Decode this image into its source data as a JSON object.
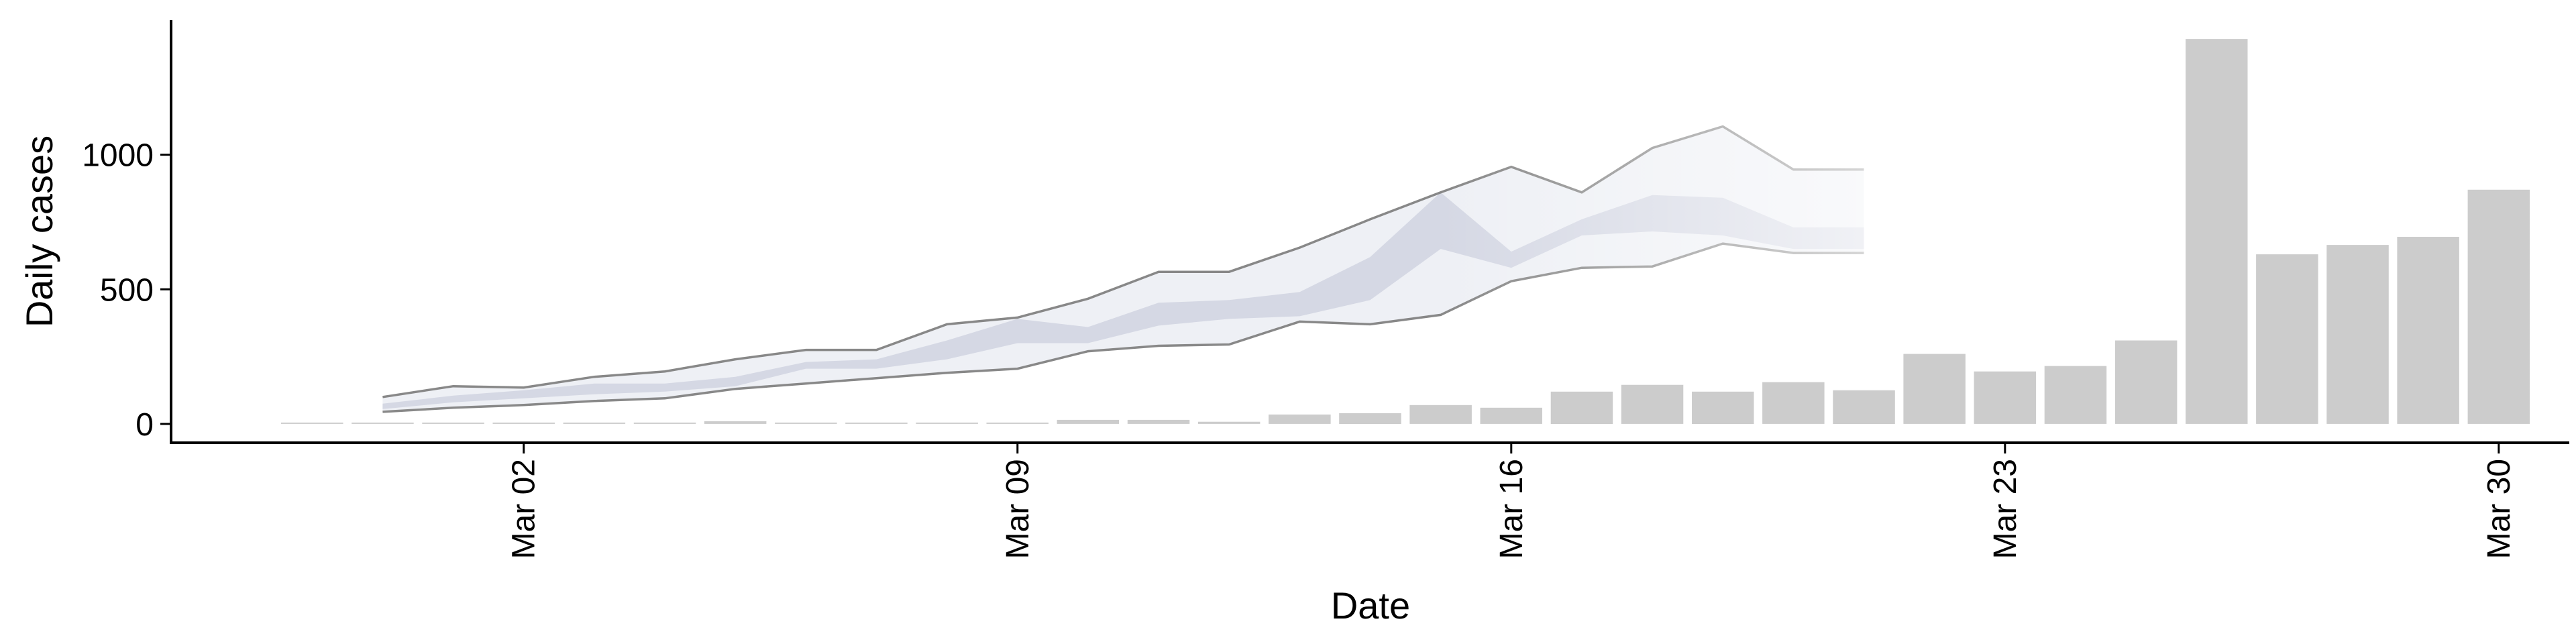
{
  "chart_data": {
    "type": "bar",
    "xlabel": "Date",
    "ylabel": "Daily cases",
    "xlim": [
      "2020-02-26",
      "2020-03-31"
    ],
    "ylim": [
      -70,
      1500
    ],
    "x_ticks": [
      "Mar 02",
      "Mar 09",
      "Mar 16",
      "Mar 23",
      "Mar 30"
    ],
    "y_ticks": [
      0,
      500,
      1000
    ],
    "grid": false,
    "legend": "none",
    "colors": {
      "bars": "#cccccc",
      "ribbon_inner": "#d5d8e4",
      "ribbon_outer": "#eef0f5",
      "band_line": "#888888",
      "axis": "#000000"
    },
    "bars": {
      "x": [
        "2020-02-28",
        "2020-02-29",
        "2020-03-01",
        "2020-03-02",
        "2020-03-03",
        "2020-03-04",
        "2020-03-05",
        "2020-03-06",
        "2020-03-07",
        "2020-03-08",
        "2020-03-09",
        "2020-03-10",
        "2020-03-11",
        "2020-03-12",
        "2020-03-13",
        "2020-03-14",
        "2020-03-15",
        "2020-03-16",
        "2020-03-17",
        "2020-03-18",
        "2020-03-19",
        "2020-03-20",
        "2020-03-21",
        "2020-03-22",
        "2020-03-23",
        "2020-03-24",
        "2020-03-25",
        "2020-03-26",
        "2020-03-27",
        "2020-03-28",
        "2020-03-29",
        "2020-03-30"
      ],
      "values": [
        1,
        1,
        1,
        1,
        1,
        1,
        10,
        4,
        4,
        4,
        5,
        15,
        15,
        8,
        35,
        40,
        70,
        60,
        120,
        145,
        120,
        155,
        125,
        260,
        195,
        215,
        310,
        1430,
        630,
        665,
        695,
        870
      ]
    },
    "projection": {
      "x": [
        "2020-02-29",
        "2020-03-01",
        "2020-03-02",
        "2020-03-03",
        "2020-03-04",
        "2020-03-05",
        "2020-03-06",
        "2020-03-07",
        "2020-03-08",
        "2020-03-09",
        "2020-03-10",
        "2020-03-11",
        "2020-03-12",
        "2020-03-13",
        "2020-03-14",
        "2020-03-15",
        "2020-03-16",
        "2020-03-17",
        "2020-03-18",
        "2020-03-19",
        "2020-03-20",
        "2020-03-21"
      ],
      "upper": [
        100,
        140,
        135,
        175,
        195,
        240,
        275,
        275,
        370,
        395,
        465,
        565,
        565,
        655,
        760,
        860,
        955,
        860,
        1025,
        1105,
        945,
        945
      ],
      "inner_upper": [
        75,
        105,
        125,
        150,
        150,
        175,
        230,
        240,
        310,
        390,
        360,
        450,
        460,
        490,
        620,
        860,
        640,
        760,
        850,
        840,
        730,
        730
      ],
      "inner_lower": [
        55,
        80,
        95,
        110,
        120,
        140,
        205,
        205,
        240,
        300,
        300,
        365,
        390,
        400,
        460,
        650,
        580,
        700,
        715,
        700,
        650,
        650
      ],
      "lower": [
        45,
        60,
        70,
        85,
        95,
        130,
        150,
        170,
        190,
        205,
        270,
        290,
        295,
        380,
        370,
        405,
        530,
        580,
        585,
        670,
        635,
        635
      ]
    }
  }
}
